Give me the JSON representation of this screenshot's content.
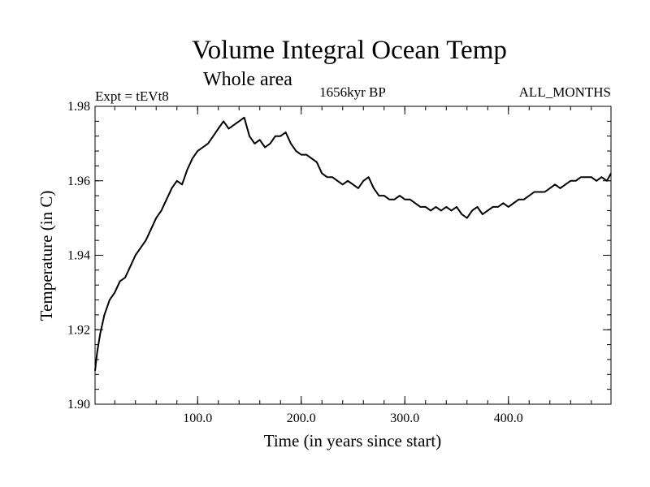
{
  "chart_data": {
    "type": "line",
    "title": "Volume Integral Ocean Temp",
    "subtitle": "Whole area",
    "annotations": {
      "left": "Expt = tEVt8",
      "center": "1656kyr BP",
      "right": "ALL_MONTHS"
    },
    "xlabel": "Time (in years since start)",
    "ylabel": "Temperature (in C)",
    "xlim": [
      1,
      499
    ],
    "ylim": [
      1.9,
      1.98
    ],
    "x_ticks": [
      100,
      200,
      300,
      400
    ],
    "x_tick_labels": [
      "100.0",
      "200.0",
      "300.0",
      "400.0"
    ],
    "y_ticks": [
      1.9,
      1.92,
      1.94,
      1.96,
      1.98
    ],
    "y_tick_labels": [
      "1.90",
      "1.92",
      "1.94",
      "1.96",
      "1.98"
    ],
    "grid": false,
    "series": [
      {
        "name": "Volume Integral Ocean Temp",
        "x": [
          1,
          3,
          6,
          10,
          15,
          20,
          25,
          30,
          35,
          40,
          45,
          50,
          55,
          60,
          65,
          70,
          75,
          80,
          85,
          90,
          95,
          100,
          105,
          110,
          115,
          120,
          125,
          130,
          135,
          140,
          145,
          150,
          155,
          160,
          165,
          170,
          175,
          180,
          185,
          190,
          195,
          200,
          205,
          210,
          215,
          220,
          225,
          230,
          235,
          240,
          245,
          250,
          255,
          260,
          265,
          270,
          275,
          280,
          285,
          290,
          295,
          300,
          305,
          310,
          315,
          320,
          325,
          330,
          335,
          340,
          345,
          350,
          355,
          360,
          365,
          370,
          375,
          380,
          385,
          390,
          395,
          400,
          405,
          410,
          415,
          420,
          425,
          430,
          435,
          440,
          445,
          450,
          455,
          460,
          465,
          470,
          475,
          480,
          485,
          490,
          495,
          499
        ],
        "values": [
          1.909,
          1.914,
          1.919,
          1.924,
          1.928,
          1.93,
          1.933,
          1.934,
          1.937,
          1.94,
          1.942,
          1.944,
          1.947,
          1.95,
          1.952,
          1.955,
          1.958,
          1.96,
          1.959,
          1.963,
          1.966,
          1.968,
          1.969,
          1.97,
          1.972,
          1.974,
          1.976,
          1.974,
          1.975,
          1.976,
          1.977,
          1.972,
          1.97,
          1.971,
          1.969,
          1.97,
          1.972,
          1.972,
          1.973,
          1.97,
          1.968,
          1.967,
          1.967,
          1.966,
          1.965,
          1.962,
          1.961,
          1.961,
          1.96,
          1.959,
          1.96,
          1.959,
          1.958,
          1.96,
          1.961,
          1.958,
          1.956,
          1.956,
          1.955,
          1.955,
          1.956,
          1.955,
          1.955,
          1.954,
          1.953,
          1.953,
          1.952,
          1.953,
          1.952,
          1.953,
          1.952,
          1.953,
          1.951,
          1.95,
          1.952,
          1.953,
          1.951,
          1.952,
          1.953,
          1.953,
          1.954,
          1.953,
          1.954,
          1.955,
          1.955,
          1.956,
          1.957,
          1.957,
          1.957,
          1.958,
          1.959,
          1.958,
          1.959,
          1.96,
          1.96,
          1.961,
          1.961,
          1.961,
          1.96,
          1.961,
          1.96,
          1.962
        ]
      }
    ]
  }
}
